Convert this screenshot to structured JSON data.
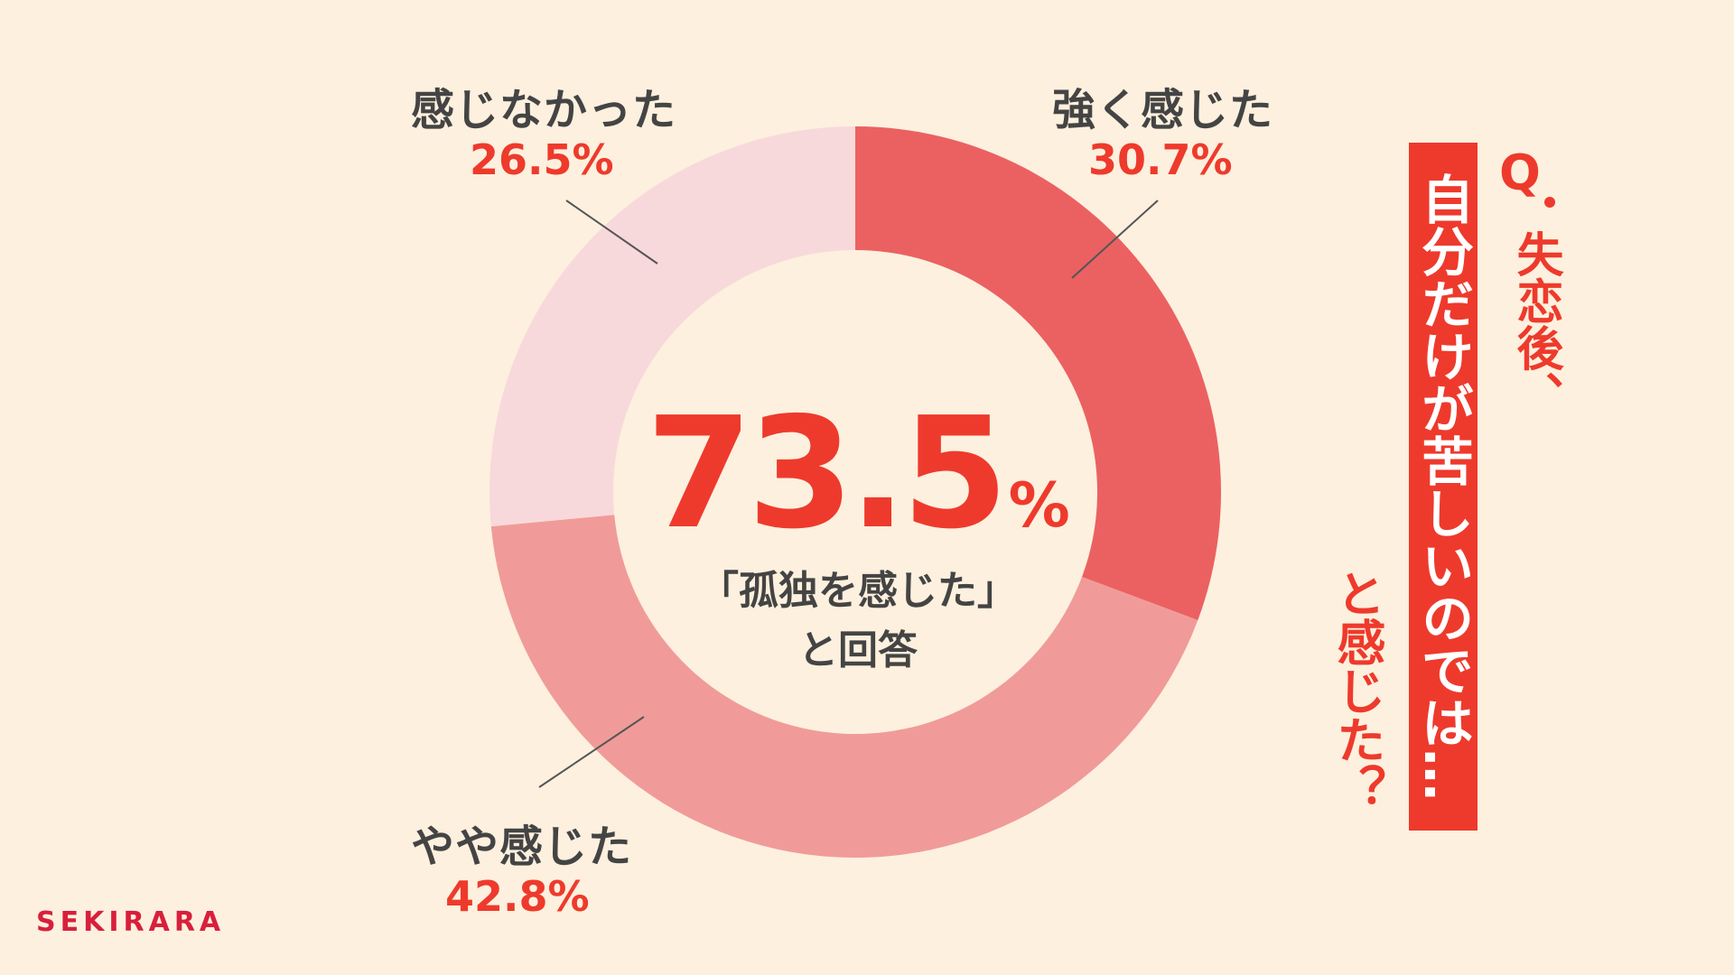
{
  "chart_data": {
    "type": "pie",
    "donut": true,
    "slices": [
      {
        "label": "強く感じた",
        "value": 30.7,
        "value_text": "30.7%",
        "color": "#eb6161"
      },
      {
        "label": "やや感じた",
        "value": 42.8,
        "value_text": "42.8%",
        "color": "#f09b99"
      },
      {
        "label": "感じなかった",
        "value": 26.5,
        "value_text": "26.5%",
        "color": "#f8d9db"
      }
    ],
    "center": {
      "number": "73.5",
      "unit": "%",
      "caption_line1": "「孤独を感じた」",
      "caption_line2": "と回答"
    }
  },
  "question": {
    "mark": "Q",
    "line1": "失恋後、",
    "line2": "自分だけが苦しいのでは…",
    "line3": "と感じた？"
  },
  "brand": "SEKIRARA",
  "colors": {
    "background": "#fdf0de",
    "accent": "#ee3a2c",
    "brand": "#d81f3c"
  }
}
